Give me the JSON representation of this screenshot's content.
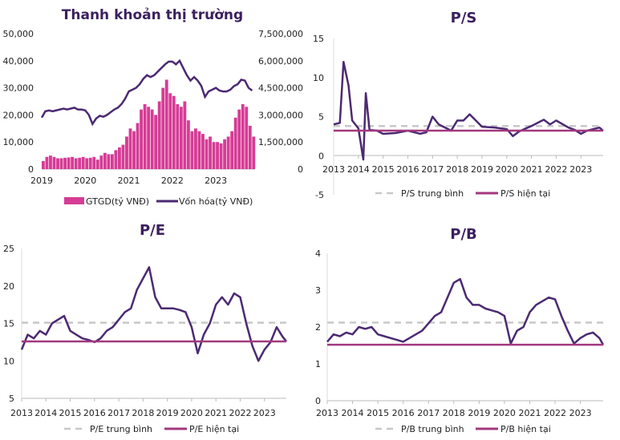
{
  "colors": {
    "cap_line": "#4b2a72",
    "bars": "#d63c96",
    "avg_line": "#c8c8c8",
    "current_line": "#a3387f",
    "title": "#3b1f5e"
  },
  "chart_data": [
    {
      "id": "liquidity",
      "type": "bar+line",
      "title": "Thanh khoản thị trường",
      "xticks": [
        "2019",
        "2020",
        "2021",
        "2022",
        "2023"
      ],
      "yticks_left": [
        "0",
        "10,000",
        "20,000",
        "30,000",
        "40,000",
        "50,000"
      ],
      "yticks_right": [
        "0",
        "1,500,000",
        "3,000,000",
        "4,500,000",
        "6,000,000",
        "7,500,000"
      ],
      "ylim_left": [
        0,
        50000
      ],
      "ylim_right": [
        0,
        7500000
      ],
      "xlim": [
        2019,
        2023.9
      ],
      "legend": [
        "GTGD(tỷ VNĐ)",
        "Vốn hóa(tỷ VNĐ)"
      ],
      "legend_position": "bottom",
      "x_start": 2019,
      "x_step_months": 1,
      "series": [
        {
          "name": "GTGD(tỷ VNĐ)",
          "kind": "bar",
          "axis": "left",
          "values": [
            3000,
            4500,
            5000,
            4500,
            4000,
            4000,
            4200,
            4300,
            4500,
            4000,
            4200,
            4500,
            4000,
            4200,
            4500,
            3500,
            5000,
            6000,
            5500,
            5500,
            7000,
            8000,
            9000,
            12000,
            15000,
            14000,
            17000,
            22000,
            24000,
            23000,
            22000,
            20000,
            25000,
            30000,
            33000,
            28000,
            27000,
            24000,
            23000,
            25000,
            18000,
            14000,
            15000,
            14000,
            13000,
            11000,
            12000,
            10000,
            10000,
            9500,
            11000,
            12000,
            14000,
            19000,
            22000,
            24000,
            23000,
            16000,
            12000
          ]
        },
        {
          "name": "Vốn hóa(tỷ VNĐ)",
          "kind": "line",
          "axis": "right",
          "values": [
            2850000,
            3200000,
            3250000,
            3200000,
            3250000,
            3300000,
            3350000,
            3300000,
            3350000,
            3400000,
            3300000,
            3300000,
            3250000,
            3000000,
            2500000,
            2800000,
            2950000,
            2900000,
            3000000,
            3150000,
            3300000,
            3400000,
            3600000,
            3900000,
            4300000,
            4400000,
            4500000,
            4700000,
            5000000,
            5200000,
            5100000,
            5200000,
            5400000,
            5600000,
            5800000,
            5950000,
            5950000,
            5800000,
            6000000,
            5600000,
            5200000,
            4900000,
            5100000,
            4900000,
            4600000,
            4000000,
            4300000,
            4400000,
            4500000,
            4350000,
            4300000,
            4300000,
            4400000,
            4600000,
            4700000,
            4950000,
            4900000,
            4500000,
            4350000
          ]
        }
      ]
    },
    {
      "id": "ps",
      "type": "line",
      "title": "P/S",
      "xticks": [
        "2013",
        "2014",
        "2015",
        "2016",
        "2017",
        "2018",
        "2019",
        "2020",
        "2021",
        "2022",
        "2023"
      ],
      "yticks": [
        "-5",
        "0",
        "5",
        "10",
        "15"
      ],
      "ylim": [
        -5,
        15
      ],
      "xlim": [
        2013,
        2023.9
      ],
      "legend": [
        "P/S trung bình",
        "P/S hiện tại"
      ],
      "legend_position": "bottom",
      "average": 3.8,
      "current": 3.2,
      "x": [
        2013,
        2013.25,
        2013.4,
        2013.6,
        2013.75,
        2014,
        2014.2,
        2014.3,
        2014.45,
        2014.75,
        2015,
        2015.5,
        2016,
        2016.5,
        2016.75,
        2017,
        2017.25,
        2017.75,
        2018,
        2018.25,
        2018.5,
        2018.75,
        2019,
        2019.5,
        2020,
        2020.25,
        2020.5,
        2021,
        2021.25,
        2021.5,
        2021.75,
        2022,
        2022.5,
        2022.75,
        2023,
        2023.25,
        2023.5,
        2023.75,
        2023.9
      ],
      "values": [
        4.0,
        4.2,
        12,
        9,
        4.5,
        3.5,
        -0.5,
        8,
        3.3,
        3.2,
        2.8,
        2.9,
        3.2,
        2.8,
        3.0,
        5.0,
        4.0,
        3.2,
        4.5,
        4.5,
        5.3,
        4.5,
        3.7,
        3.6,
        3.4,
        2.5,
        3.1,
        3.8,
        4.2,
        4.6,
        4.0,
        4.5,
        3.6,
        3.3,
        2.8,
        3.2,
        3.4,
        3.6,
        3.2
      ]
    },
    {
      "id": "pe",
      "type": "line",
      "title": "P/E",
      "xticks": [
        "2013",
        "2014",
        "2015",
        "2016",
        "2017",
        "2018",
        "2019",
        "2020",
        "2021",
        "2022",
        "2023"
      ],
      "yticks": [
        "5",
        "10",
        "15",
        "20",
        "25"
      ],
      "ylim": [
        5,
        25
      ],
      "xlim": [
        2013,
        2023.9
      ],
      "legend": [
        "P/E trung bình",
        "P/E hiện tại"
      ],
      "legend_position": "bottom",
      "average": 15.1,
      "current": 12.6,
      "x": [
        2013,
        2013.25,
        2013.5,
        2013.75,
        2014,
        2014.25,
        2014.5,
        2014.75,
        2015,
        2015.25,
        2015.5,
        2015.75,
        2016,
        2016.25,
        2016.5,
        2016.75,
        2017,
        2017.25,
        2017.5,
        2017.75,
        2018,
        2018.25,
        2018.5,
        2018.75,
        2019,
        2019.25,
        2019.5,
        2019.75,
        2020,
        2020.25,
        2020.5,
        2020.75,
        2021,
        2021.25,
        2021.5,
        2021.75,
        2022,
        2022.25,
        2022.5,
        2022.75,
        2023,
        2023.25,
        2023.5,
        2023.75,
        2023.9
      ],
      "values": [
        11.5,
        13.5,
        13,
        14,
        13.5,
        15,
        15.5,
        16,
        14,
        13.5,
        13,
        12.8,
        12.5,
        13,
        14,
        14.5,
        15.5,
        16.5,
        17,
        19.5,
        21,
        22.5,
        18.5,
        17,
        17,
        17,
        16.8,
        16.5,
        14.5,
        11,
        13.5,
        15,
        17.5,
        18.5,
        17.5,
        19,
        18.5,
        15,
        12,
        10,
        11.5,
        12.5,
        14.5,
        13.2,
        12.6
      ]
    },
    {
      "id": "pb",
      "type": "line",
      "title": "P/B",
      "xticks": [
        "2013",
        "2014",
        "2015",
        "2016",
        "2017",
        "2018",
        "2019",
        "2020",
        "2021",
        "2022",
        "2023"
      ],
      "yticks": [
        "0",
        "1",
        "2",
        "3",
        "4"
      ],
      "ylim": [
        0,
        4
      ],
      "xlim": [
        2013,
        2023.9
      ],
      "legend": [
        "P/B trung bình",
        "P/B hiện tại"
      ],
      "legend_position": "bottom",
      "average": 2.12,
      "current": 1.52,
      "x": [
        2013,
        2013.25,
        2013.5,
        2013.75,
        2014,
        2014.25,
        2014.5,
        2014.75,
        2015,
        2015.25,
        2015.5,
        2015.75,
        2016,
        2016.25,
        2016.5,
        2016.75,
        2017,
        2017.25,
        2017.5,
        2017.75,
        2018,
        2018.25,
        2018.5,
        2018.75,
        2019,
        2019.25,
        2019.5,
        2019.75,
        2020,
        2020.25,
        2020.5,
        2020.75,
        2021,
        2021.25,
        2021.5,
        2021.75,
        2022,
        2022.25,
        2022.5,
        2022.75,
        2023,
        2023.25,
        2023.5,
        2023.75,
        2023.9
      ],
      "values": [
        1.6,
        1.8,
        1.75,
        1.85,
        1.8,
        2.0,
        1.95,
        2.0,
        1.8,
        1.75,
        1.7,
        1.65,
        1.6,
        1.7,
        1.8,
        1.9,
        2.1,
        2.3,
        2.4,
        2.8,
        3.2,
        3.3,
        2.8,
        2.6,
        2.6,
        2.5,
        2.45,
        2.4,
        2.3,
        1.55,
        1.9,
        2.0,
        2.4,
        2.6,
        2.7,
        2.8,
        2.75,
        2.3,
        1.9,
        1.55,
        1.7,
        1.8,
        1.85,
        1.7,
        1.52
      ]
    }
  ]
}
